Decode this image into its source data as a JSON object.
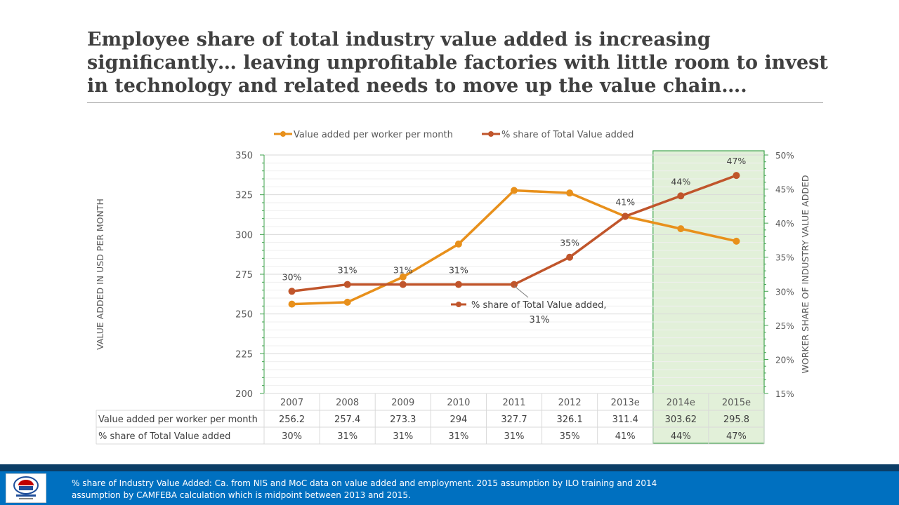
{
  "title": "Employee share of total industry value added is increasing significantly… leaving unprofitable factories with little room to invest in technology and related needs to move up the value chain….",
  "footer_note": "% share of Industry Value Added:  Ca. from NIS and MoC data on value added and employment.   2015 assumption by ILO training and 2014 assumption by CAMFEBA calculation which is midpoint between 2013 and 2015.",
  "colors": {
    "value_series": "#e8901b",
    "share_series": "#c0552b",
    "highlight_fill": "#e2f0d9",
    "highlight_border": "#3fa34d",
    "axis_tick": "#3fa34d",
    "footer": "#0070c0"
  },
  "chart_data": {
    "type": "line",
    "categories": [
      "2007",
      "2008",
      "2009",
      "2010",
      "2011",
      "2012",
      "2013e",
      "2014e",
      "2015e"
    ],
    "series": [
      {
        "name": "Value added per  worker per month",
        "axis": "left",
        "values": [
          256.2,
          257.4,
          273.3,
          294,
          327.7,
          326.1,
          311.4,
          303.62,
          295.8
        ],
        "table_labels": [
          "256.2",
          "257.4",
          "273.3",
          "294",
          "327.7",
          "326.1",
          "311.4",
          "303.62",
          "295.8"
        ],
        "color": "#e8901b"
      },
      {
        "name": "% share of Total Value added",
        "axis": "right",
        "values": [
          30,
          31,
          31,
          31,
          31,
          35,
          41,
          44,
          47
        ],
        "table_labels": [
          "30%",
          "31%",
          "31%",
          "31%",
          "31%",
          "35%",
          "41%",
          "44%",
          "47%"
        ],
        "data_labels": [
          "30%",
          "31%",
          "31%",
          "31%",
          "",
          "35%",
          "41%",
          "44%",
          "47%"
        ],
        "color": "#c0552b"
      }
    ],
    "callout": {
      "series": "% share of Total Value added",
      "category": "2011",
      "line1": "% share of Total Value added,",
      "line2": "31%"
    },
    "y_left": {
      "label": "VALUE ADDED IN USD PER MONTH",
      "ylim": [
        200,
        350
      ],
      "ticks": [
        "200",
        "225",
        "250",
        "275",
        "300",
        "325",
        "350"
      ]
    },
    "y_right": {
      "label": "WORKER SHARE OF INDUSTRY VALUE ADDED",
      "ylim": [
        15,
        50
      ],
      "ticks": [
        "15%",
        "20%",
        "25%",
        "30%",
        "35%",
        "40%",
        "45%",
        "50%"
      ]
    },
    "highlight_categories": [
      "2014e",
      "2015e"
    ],
    "legend_position": "top-center",
    "grid": true,
    "data_table": true
  }
}
